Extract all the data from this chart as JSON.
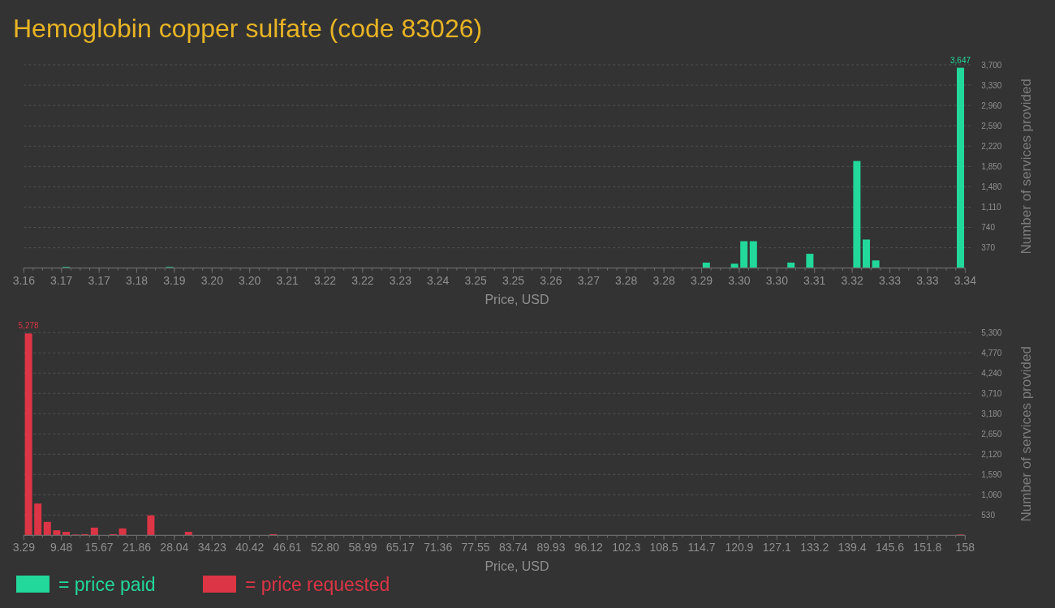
{
  "chart_data": [
    {
      "type": "histogram",
      "title": "Hemoglobin copper sulfate (code 83026)",
      "xlabel": "Price, USD",
      "ylabel": "Number of services provided",
      "bins": [
        3.16,
        3.1618,
        3.1636,
        3.1654,
        3.1672,
        3.169,
        3.1708,
        3.1726,
        3.1744,
        3.1762,
        3.178,
        3.1798,
        3.1816,
        3.1834,
        3.1852,
        3.187,
        3.1888,
        3.1906,
        3.1924,
        3.1942,
        3.196,
        3.1978,
        3.1996,
        3.2014,
        3.2032,
        3.205,
        3.2068,
        3.2086,
        3.2104,
        3.2122,
        3.214,
        3.2158,
        3.2176,
        3.2194,
        3.2212,
        3.223,
        3.2248,
        3.2266,
        3.2284,
        3.2302,
        3.232,
        3.2338,
        3.2356,
        3.2374,
        3.2392,
        3.241,
        3.2428,
        3.2446,
        3.2464,
        3.2482,
        3.25,
        3.2518,
        3.2536,
        3.2554,
        3.2572,
        3.259,
        3.2608,
        3.2626,
        3.2644,
        3.2662,
        3.268,
        3.2698,
        3.2716,
        3.2734,
        3.2752,
        3.277,
        3.2788,
        3.2806,
        3.2824,
        3.2842,
        3.286,
        3.2878,
        3.2896,
        3.2914,
        3.2932,
        3.295,
        3.2968,
        3.2986,
        3.3004,
        3.3022,
        3.304,
        3.3058,
        3.3076,
        3.3094,
        3.3112,
        3.313,
        3.3148,
        3.3166,
        3.3184,
        3.3202,
        3.322,
        3.3238,
        3.3256,
        3.3274,
        3.3292,
        3.331,
        3.3328,
        3.3346,
        3.3364,
        3.3382,
        3.34
      ],
      "series": [
        {
          "name": "= price paid",
          "color": "#22d89a",
          "values": [
            0,
            0,
            0,
            0,
            20,
            0,
            0,
            0,
            0,
            0,
            0,
            0,
            0,
            0,
            0,
            20,
            0,
            0,
            0,
            0,
            0,
            0,
            0,
            0,
            0,
            0,
            0,
            0,
            0,
            0,
            0,
            0,
            0,
            0,
            0,
            0,
            0,
            0,
            0,
            0,
            0,
            0,
            0,
            0,
            0,
            0,
            0,
            0,
            0,
            0,
            0,
            0,
            0,
            0,
            0,
            0,
            0,
            0,
            0,
            0,
            0,
            0,
            0,
            0,
            0,
            0,
            0,
            0,
            0,
            0,
            0,
            0,
            100,
            0,
            0,
            80,
            490,
            490,
            0,
            0,
            0,
            100,
            0,
            260,
            0,
            0,
            0,
            0,
            1950,
            520,
            140,
            0,
            0,
            0,
            0,
            0,
            0,
            0,
            0,
            3647
          ],
          "value_labels": [
            null,
            null,
            null,
            null,
            null,
            null,
            null,
            null,
            null,
            null,
            null,
            null,
            null,
            null,
            null,
            null,
            null,
            null,
            null,
            null,
            null,
            null,
            null,
            null,
            null,
            null,
            null,
            null,
            null,
            null,
            null,
            null,
            null,
            null,
            null,
            null,
            null,
            null,
            null,
            null,
            null,
            null,
            null,
            null,
            null,
            null,
            null,
            null,
            null,
            null,
            null,
            null,
            null,
            null,
            null,
            null,
            null,
            null,
            null,
            null,
            null,
            null,
            null,
            null,
            null,
            null,
            null,
            null,
            null,
            null,
            null,
            null,
            null,
            null,
            null,
            null,
            null,
            null,
            null,
            null,
            null,
            null,
            null,
            null,
            null,
            null,
            null,
            null,
            null,
            null,
            null,
            null,
            null,
            null,
            null,
            null,
            null,
            null,
            null,
            "3,647"
          ]
        }
      ],
      "xlim": [
        3.16,
        3.34
      ],
      "ylim": [
        0,
        3700
      ],
      "xticks": [
        3.16,
        {
          "value": 3.1672,
          "label": "3.17"
        },
        {
          "value": 3.1744,
          "label": "3.17"
        },
        {
          "value": 3.1816,
          "label": "3.18"
        },
        {
          "value": 3.1888,
          "label": "3.19"
        },
        {
          "value": 3.196,
          "label": "3.20"
        },
        {
          "value": 3.2032,
          "label": "3.20"
        },
        {
          "value": 3.2104,
          "label": "3.21"
        },
        {
          "value": 3.2176,
          "label": "3.22"
        },
        {
          "value": 3.2248,
          "label": "3.22"
        },
        {
          "value": 3.232,
          "label": "3.23"
        },
        {
          "value": 3.2392,
          "label": "3.24"
        },
        {
          "value": 3.2464,
          "label": "3.25"
        },
        {
          "value": 3.2536,
          "label": "3.25"
        },
        {
          "value": 3.2608,
          "label": "3.26"
        },
        {
          "value": 3.268,
          "label": "3.27"
        },
        {
          "value": 3.2752,
          "label": "3.28"
        },
        {
          "value": 3.2824,
          "label": "3.28"
        },
        {
          "value": 3.2896,
          "label": "3.29"
        },
        {
          "value": 3.2968,
          "label": "3.30"
        },
        {
          "value": 3.304,
          "label": "3.30"
        },
        {
          "value": 3.3112,
          "label": "3.31"
        },
        {
          "value": 3.3184,
          "label": "3.32"
        },
        {
          "value": 3.3256,
          "label": "3.33"
        },
        {
          "value": 3.3328,
          "label": "3.33"
        },
        3.34
      ],
      "yticks": [
        370,
        740,
        {
          "value": 1110,
          "label": "1,110"
        },
        {
          "value": 1480,
          "label": "1,480"
        },
        {
          "value": 1850,
          "label": "1,850"
        },
        {
          "value": 2220,
          "label": "2,220"
        },
        {
          "value": 2590,
          "label": "2,590"
        },
        {
          "value": 2960,
          "label": "2,960"
        },
        {
          "value": 3330,
          "label": "3,330"
        },
        {
          "value": 3700,
          "label": "3,700"
        }
      ],
      "grid": "y",
      "legend": "bottom left"
    },
    {
      "type": "histogram",
      "xlabel": "Price, USD",
      "ylabel": "Number of services provided",
      "bins": [
        3.29,
        4.84,
        6.38,
        7.93,
        9.48,
        11.03,
        12.57,
        14.12,
        15.67,
        17.21,
        18.76,
        20.31,
        21.86,
        23.4,
        24.95,
        26.5,
        28.04,
        29.59,
        31.14,
        32.68,
        34.23,
        35.78,
        37.33,
        38.87,
        40.42,
        41.97,
        43.51,
        45.06,
        46.61,
        48.16,
        49.7,
        51.25,
        52.8,
        54.34,
        55.89,
        57.44,
        58.99,
        60.53,
        62.08,
        63.63,
        65.17,
        66.72,
        68.27,
        69.82,
        71.36,
        72.91,
        74.46,
        76,
        77.55,
        79.1,
        80.65,
        82.19,
        83.74,
        85.29,
        86.83,
        88.38,
        89.93,
        91.47,
        93.02,
        94.57,
        96.12,
        97.66,
        99.21,
        100.76,
        102.3,
        103.85,
        105.4,
        106.95,
        108.49,
        110.04,
        111.59,
        113.13,
        114.68,
        116.23,
        117.78,
        119.32,
        120.87,
        122.42,
        123.96,
        125.51,
        127.06,
        128.61,
        130.15,
        131.7,
        133.25,
        134.79,
        136.34,
        137.89,
        139.43,
        140.98,
        142.53,
        144.08,
        145.62,
        147.17,
        148.72,
        150.26,
        151.81,
        153.36,
        154.91,
        156.45,
        158
      ],
      "series": [
        {
          "name": "= price requested",
          "color": "#dc3545",
          "values": [
            5278,
            830,
            350,
            130,
            90,
            20,
            30,
            200,
            0,
            30,
            180,
            0,
            0,
            520,
            0,
            0,
            0,
            90,
            0,
            0,
            0,
            0,
            0,
            0,
            0,
            0,
            30,
            0,
            0,
            0,
            0,
            0,
            0,
            0,
            0,
            0,
            0,
            0,
            0,
            0,
            0,
            0,
            0,
            0,
            0,
            0,
            0,
            0,
            0,
            0,
            0,
            0,
            0,
            0,
            0,
            0,
            0,
            0,
            0,
            0,
            0,
            0,
            0,
            0,
            0,
            0,
            0,
            0,
            0,
            0,
            0,
            0,
            0,
            0,
            0,
            0,
            0,
            0,
            0,
            0,
            0,
            0,
            0,
            0,
            0,
            0,
            0,
            0,
            0,
            0,
            0,
            0,
            0,
            0,
            0,
            0,
            0,
            0,
            0,
            20
          ],
          "value_labels": [
            "5,278",
            null,
            null,
            null,
            null,
            null,
            null,
            null,
            null,
            null,
            null,
            null,
            null,
            null,
            null,
            null,
            null,
            null,
            null,
            null,
            null,
            null,
            null,
            null,
            null,
            null,
            null,
            null,
            null,
            null,
            null,
            null,
            null,
            null,
            null,
            null,
            null,
            null,
            null,
            null,
            null,
            null,
            null,
            null,
            null,
            null,
            null,
            null,
            null,
            null,
            null,
            null,
            null,
            null,
            null,
            null,
            null,
            null,
            null,
            null,
            null,
            null,
            null,
            null,
            null,
            null,
            null,
            null,
            null,
            null,
            null,
            null,
            null,
            null,
            null,
            null,
            null,
            null,
            null,
            null,
            null,
            null,
            null,
            null,
            null,
            null,
            null,
            null,
            null,
            null,
            null,
            null,
            null,
            null,
            null,
            null,
            null,
            null,
            null,
            null
          ]
        }
      ],
      "xlim": [
        3.29,
        158
      ],
      "ylim": [
        0,
        5300
      ],
      "xticks": [
        3.29,
        9.48,
        15.67,
        21.86,
        28.04,
        34.23,
        40.42,
        46.61,
        {
          "value": 52.8,
          "label": "52.80"
        },
        58.99,
        65.17,
        71.36,
        77.55,
        83.74,
        89.93,
        96.12,
        102.3,
        {
          "value": 108.49,
          "label": "108.5"
        },
        {
          "value": 114.68,
          "label": "114.7"
        },
        {
          "value": 120.87,
          "label": "120.9"
        },
        {
          "value": 127.06,
          "label": "127.1"
        },
        {
          "value": 133.25,
          "label": "133.2"
        },
        {
          "value": 139.43,
          "label": "139.4"
        },
        {
          "value": 145.62,
          "label": "145.6"
        },
        {
          "value": 151.81,
          "label": "151.8"
        },
        158
      ],
      "yticks": [
        530,
        {
          "value": 1060,
          "label": "1,060"
        },
        {
          "value": 1590,
          "label": "1,590"
        },
        {
          "value": 2120,
          "label": "2,120"
        },
        {
          "value": 2650,
          "label": "2,650"
        },
        {
          "value": 3180,
          "label": "3,180"
        },
        {
          "value": 3710,
          "label": "3,710"
        },
        {
          "value": 4240,
          "label": "4,240"
        },
        {
          "value": 4770,
          "label": "4,770"
        },
        {
          "value": 5300,
          "label": "5,300"
        }
      ],
      "grid": "y",
      "legend": "bottom left"
    }
  ]
}
